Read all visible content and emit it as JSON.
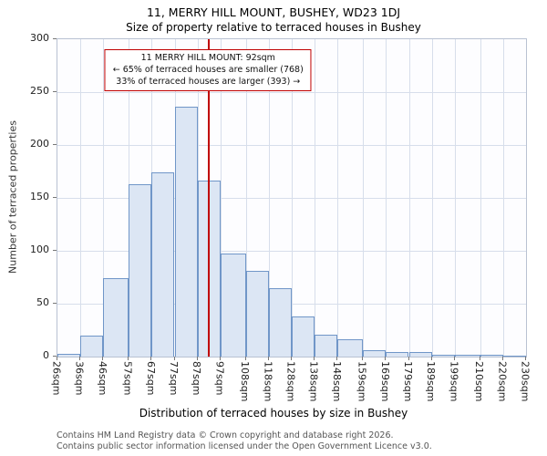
{
  "chart": {
    "title": "11, MERRY HILL MOUNT, BUSHEY, WD23 1DJ",
    "subtitle": "Size of property relative to terraced houses in Bushey",
    "ylabel": "Number of terraced properties",
    "xlabel": "Distribution of terraced houses by size in Bushey"
  },
  "chart_data": {
    "type": "bar",
    "title": "11, MERRY HILL MOUNT, BUSHEY, WD23 1DJ",
    "subtitle": "Size of property relative to terraced houses in Bushey",
    "xlabel": "Distribution of terraced houses by size in Bushey",
    "ylabel": "Number of terraced properties",
    "x_ticks_sqm": [
      26,
      36,
      46,
      57,
      67,
      77,
      87,
      97,
      108,
      118,
      128,
      138,
      148,
      159,
      169,
      179,
      189,
      199,
      210,
      220,
      230
    ],
    "x_tick_labels": [
      "26sqm",
      "36sqm",
      "46sqm",
      "57sqm",
      "67sqm",
      "77sqm",
      "87sqm",
      "97sqm",
      "108sqm",
      "118sqm",
      "128sqm",
      "138sqm",
      "148sqm",
      "159sqm",
      "169sqm",
      "179sqm",
      "189sqm",
      "199sqm",
      "210sqm",
      "220sqm",
      "230sqm"
    ],
    "values": [
      3,
      20,
      74,
      163,
      174,
      236,
      166,
      97,
      81,
      65,
      38,
      21,
      16,
      6,
      4,
      4,
      2,
      2,
      2,
      1
    ],
    "ylim": [
      0,
      300
    ],
    "y_ticks": [
      0,
      50,
      100,
      150,
      200,
      250,
      300
    ],
    "grid": true,
    "marker_value_sqm": 92,
    "colors": {
      "bar_fill": "#dce6f4",
      "bar_border": "#7096c8",
      "grid": "#d7deeb",
      "marker": "#c00000"
    }
  },
  "annotation": {
    "line1": "11 MERRY HILL MOUNT: 92sqm",
    "line2": "← 65% of terraced houses are smaller (768)",
    "line3": "33% of terraced houses are larger (393) →"
  },
  "footer": {
    "line1": "Contains HM Land Registry data © Crown copyright and database right 2026.",
    "line2": "Contains public sector information licensed under the Open Government Licence v3.0."
  }
}
